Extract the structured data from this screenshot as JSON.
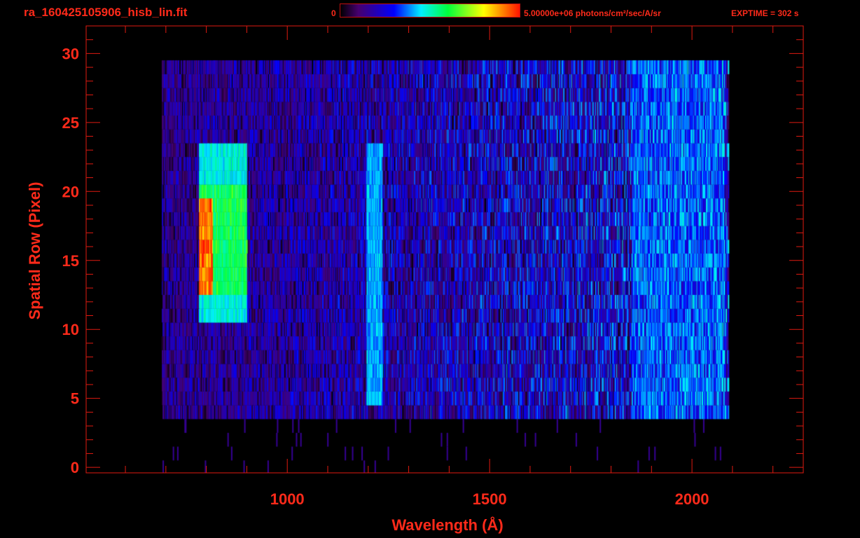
{
  "header": {
    "title": "ra_160425105906_hisb_lin.fit",
    "colorbar_min_label": "0",
    "colorbar_max_label": "5.00000e+06 photons/cm²/sec/A/sr",
    "exptime_label": "EXPTIME = 302 s"
  },
  "chart_data": {
    "type": "heatmap",
    "title": "ra_160425105906_hisb_lin.fit",
    "xlabel": "Wavelength (Å)",
    "ylabel": "Spatial Row (Pixel)",
    "xlim": [
      503,
      2275
    ],
    "ylim": [
      -0.4,
      32
    ],
    "x_ticks": [
      1000,
      1500,
      2000
    ],
    "x_tick_labels": [
      "1000",
      "1500",
      "2000"
    ],
    "x_minor_step": 100,
    "y_ticks": [
      0,
      5,
      10,
      15,
      20,
      25,
      30
    ],
    "y_tick_labels": [
      "0",
      "5",
      "10",
      "15",
      "20",
      "25",
      "30"
    ],
    "y_minor_step": 1,
    "colorscale": "rainbow (black-purple-blue-cyan-green-yellow-red)",
    "colorbar_range": [
      0,
      5000000
    ],
    "colorbar_units": "photons/cm²/sec/A/sr",
    "data_extent": {
      "wavelength": [
        690,
        2090
      ],
      "rows": [
        0,
        30
      ]
    },
    "bright_rows": [
      4,
      29
    ],
    "features": [
      {
        "wavelength_range": [
          780,
          900
        ],
        "rows": [
          11,
          23
        ],
        "peak_rows": [
          13,
          19
        ],
        "peak_wavelength": [
          780,
          800
        ],
        "level": 0.95
      },
      {
        "wavelength_range": [
          1195,
          1235
        ],
        "rows": [
          5,
          23
        ],
        "peak_wavelength": 1216,
        "level": 0.38
      },
      {
        "wavelength_range": [
          1850,
          2080
        ],
        "rows": [
          4,
          29
        ],
        "level": 0.35
      }
    ]
  }
}
